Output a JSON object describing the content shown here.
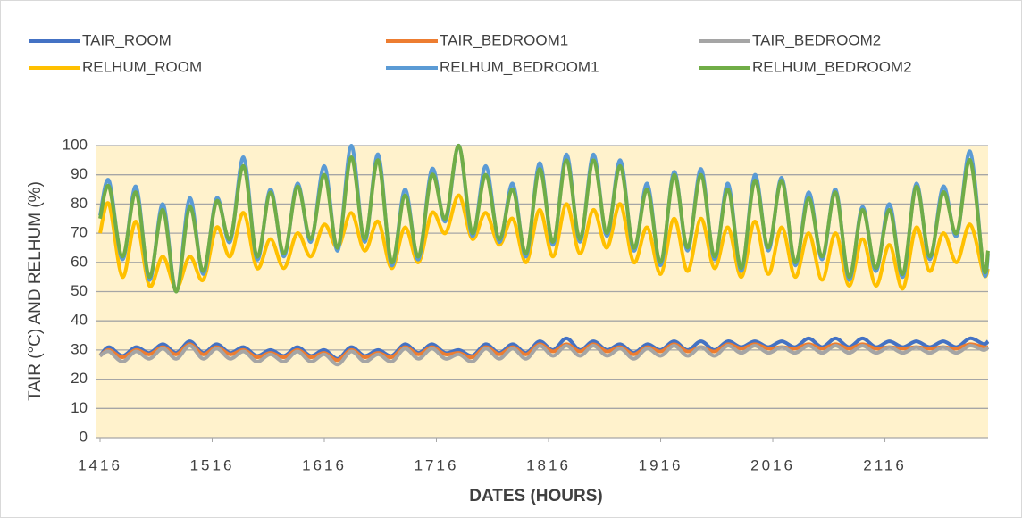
{
  "chart_data": {
    "type": "line",
    "xlabel": "DATES (HOURS)",
    "ylabel": "TAIR (°C) AND RELHUM (%)",
    "x": [
      1416,
      1424,
      1436,
      1448,
      1460,
      1472,
      1484,
      1496,
      1508,
      1520,
      1532,
      1544,
      1556,
      1568,
      1580,
      1592,
      1604,
      1616,
      1628,
      1640,
      1652,
      1664,
      1676,
      1688,
      1700,
      1712,
      1724,
      1736,
      1748,
      1760,
      1772,
      1784,
      1796,
      1808,
      1820,
      1832,
      1844,
      1856,
      1868,
      1880,
      1892,
      1904,
      1916,
      1928,
      1940,
      1952,
      1964,
      1976,
      1988,
      2000,
      2012,
      2024,
      2036,
      2048,
      2060,
      2072,
      2084,
      2096,
      2108,
      2120,
      2132,
      2144,
      2156,
      2168,
      2180,
      2192,
      2204,
      2208
    ],
    "xlim": [
      1416,
      2208
    ],
    "xticks": [
      1416,
      1516,
      1616,
      1716,
      1816,
      1916,
      2016,
      2116
    ],
    "ylim": [
      0,
      100
    ],
    "yticks": [
      0,
      10,
      20,
      30,
      40,
      50,
      60,
      70,
      80,
      90,
      100
    ],
    "grid": true,
    "legend": "top",
    "series": [
      {
        "name": "TAIR_ROOM",
        "color": "#4472c4",
        "values": [
          28,
          31,
          28,
          31,
          29,
          32,
          29,
          33,
          29,
          32,
          29,
          31,
          28,
          30,
          28,
          31,
          28,
          30,
          27,
          31,
          28,
          30,
          28,
          32,
          29,
          32,
          29,
          30,
          28,
          32,
          29,
          32,
          29,
          33,
          30,
          34,
          30,
          33,
          30,
          32,
          29,
          32,
          30,
          33,
          30,
          33,
          30,
          33,
          31,
          33,
          31,
          33,
          31,
          34,
          31,
          34,
          31,
          34,
          31,
          33,
          31,
          33,
          31,
          33,
          31,
          34,
          32,
          33
        ]
      },
      {
        "name": "TAIR_BEDROOM1",
        "color": "#ed7d31",
        "values": [
          28,
          30,
          27.5,
          30,
          28.5,
          31,
          28.5,
          32,
          28.5,
          31,
          28.5,
          30,
          27.5,
          29,
          27.5,
          30,
          27.5,
          29,
          26.5,
          30,
          27.5,
          29,
          27.5,
          31,
          28.5,
          31,
          28.5,
          29,
          27.5,
          31,
          28.5,
          31,
          28.5,
          32,
          29.5,
          32,
          29.5,
          32,
          29.5,
          31,
          28.5,
          31,
          29.5,
          32,
          29.5,
          31,
          29.5,
          32,
          30.5,
          32,
          30.5,
          31,
          30.5,
          32,
          30.5,
          32,
          30.5,
          32,
          30.5,
          31,
          30.5,
          31,
          30.5,
          31,
          30.5,
          32,
          31,
          31
        ]
      },
      {
        "name": "TAIR_BEDROOM2",
        "color": "#a5a5a5",
        "values": [
          28,
          29.5,
          26,
          29.5,
          27,
          30.5,
          27,
          31.5,
          27,
          30.5,
          27,
          29.5,
          26,
          28.5,
          26,
          29.5,
          26,
          28.5,
          25,
          29.5,
          26,
          28.5,
          26,
          30.5,
          27,
          30.5,
          27,
          28.5,
          26,
          30.5,
          27,
          30.5,
          27,
          31.5,
          28,
          31.5,
          28,
          31.5,
          28,
          30.5,
          27,
          30.5,
          28,
          31.5,
          28,
          31,
          28,
          31.5,
          29,
          31.5,
          29,
          31,
          29,
          31.5,
          29,
          31.5,
          29,
          31.5,
          29,
          31,
          29,
          31,
          29,
          31,
          29,
          31.5,
          30,
          31
        ]
      },
      {
        "name": "RELHUM_ROOM",
        "color": "#ffc000",
        "values": [
          70,
          80,
          55,
          74,
          52,
          62,
          51,
          62,
          54,
          72,
          62,
          77,
          58,
          68,
          58,
          70,
          62,
          73,
          65,
          77,
          64,
          74,
          58,
          72,
          60,
          77,
          70,
          83,
          68,
          77,
          66,
          75,
          60,
          78,
          62,
          80,
          63,
          78,
          65,
          80,
          60,
          72,
          56,
          75,
          57,
          75,
          58,
          72,
          55,
          74,
          56,
          72,
          55,
          70,
          54,
          70,
          52,
          68,
          52,
          66,
          51,
          72,
          57,
          70,
          60,
          73,
          56,
          58
        ]
      },
      {
        "name": "RELHUM_BEDROOM1",
        "color": "#5b9bd5",
        "values": [
          76,
          88,
          61,
          86,
          54,
          80,
          50,
          82,
          56,
          82,
          67,
          96,
          61,
          85,
          62,
          87,
          67,
          93,
          64,
          100,
          67,
          97,
          59,
          85,
          61,
          92,
          74,
          100,
          69,
          93,
          67,
          87,
          62,
          94,
          66,
          97,
          67,
          97,
          69,
          95,
          64,
          87,
          59,
          91,
          64,
          92,
          61,
          87,
          57,
          90,
          64,
          89,
          59,
          84,
          61,
          85,
          54,
          79,
          57,
          80,
          55,
          87,
          61,
          86,
          69,
          98,
          57,
          63
        ]
      },
      {
        "name": "RELHUM_BEDROOM2",
        "color": "#70ad47",
        "values": [
          75,
          86,
          62,
          84,
          55,
          78,
          50,
          79,
          57,
          81,
          68,
          93,
          62,
          84,
          63,
          86,
          68,
          90,
          65,
          96,
          68,
          95,
          60,
          83,
          62,
          90,
          75,
          100,
          70,
          90,
          68,
          85,
          63,
          92,
          67,
          95,
          68,
          95,
          70,
          93,
          65,
          85,
          60,
          90,
          65,
          90,
          62,
          85,
          58,
          88,
          65,
          88,
          60,
          82,
          62,
          84,
          55,
          78,
          58,
          78,
          56,
          86,
          62,
          84,
          70,
          95,
          58,
          64
        ]
      }
    ]
  }
}
